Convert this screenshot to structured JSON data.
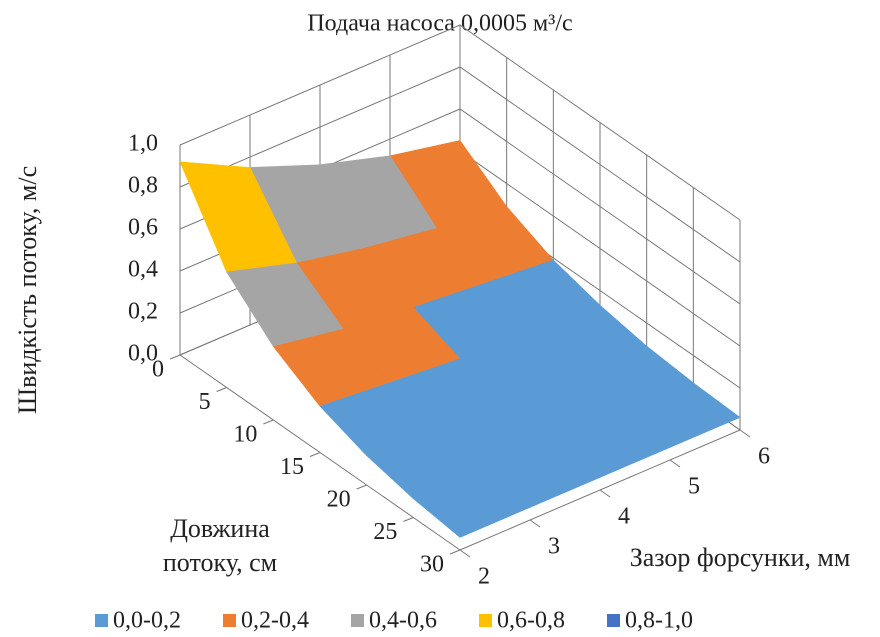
{
  "chart_data": {
    "type": "surface",
    "title": "Подача насоса 0,0005 м³/с",
    "z_label": "Швидкість потоку, м/с",
    "x_label": "Довжина потоку, см",
    "y_label": "Зазор форсунки, мм",
    "x": [
      0,
      5,
      10,
      15,
      20,
      25,
      30
    ],
    "y": [
      2,
      3,
      4,
      5,
      6
    ],
    "values": [
      [
        0.92,
        0.55,
        0.35,
        0.22,
        0.14,
        0.09,
        0.06
      ],
      [
        0.75,
        0.45,
        0.29,
        0.19,
        0.12,
        0.08,
        0.06
      ],
      [
        0.62,
        0.38,
        0.25,
        0.16,
        0.11,
        0.08,
        0.06
      ],
      [
        0.52,
        0.33,
        0.22,
        0.15,
        0.1,
        0.08,
        0.06
      ],
      [
        0.45,
        0.29,
        0.19,
        0.13,
        0.09,
        0.07,
        0.06
      ]
    ],
    "xlim": [
      0,
      30
    ],
    "xticks": [
      0,
      5,
      10,
      15,
      20,
      25,
      30
    ],
    "ylim": [
      2,
      6
    ],
    "yticks": [
      2,
      3,
      4,
      5,
      6
    ],
    "zlim": [
      0,
      1
    ],
    "zticks": [
      {
        "value": 0,
        "label": "0,0"
      },
      {
        "value": 0.2,
        "label": "0,2"
      },
      {
        "value": 0.4,
        "label": "0,4"
      },
      {
        "value": 0.6,
        "label": "0,6"
      },
      {
        "value": 0.8,
        "label": "0,8"
      },
      {
        "value": 1,
        "label": "1,0"
      }
    ],
    "bands": [
      {
        "name": "0,0-0,2",
        "color": "#5b9bd5",
        "range": [
          0,
          0.2
        ]
      },
      {
        "name": "0,2-0,4",
        "color": "#ed7d31",
        "range": [
          0.2,
          0.4
        ]
      },
      {
        "name": "0,4-0,6",
        "color": "#a5a5a5",
        "range": [
          0.4,
          0.6
        ]
      },
      {
        "name": "0,6-0,8",
        "color": "#ffc000",
        "range": [
          0.6,
          0.8
        ]
      },
      {
        "name": "0,8-1,0",
        "color": "#4472c4",
        "range": [
          0.8,
          1
        ]
      }
    ],
    "grid": true
  }
}
